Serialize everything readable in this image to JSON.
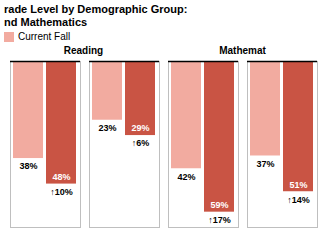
{
  "chart_data": {
    "type": "bar",
    "title": "rade Level by Demographic Group:",
    "subtitle": "nd Mathematics",
    "categories": [
      null,
      null,
      null,
      null
    ],
    "series": [
      {
        "name": "Current Fall",
        "color": "#f2aba0",
        "values": [
          38,
          23,
          42,
          37
        ],
        "value_labels": [
          "38%",
          "23%",
          "42%",
          "37%"
        ]
      },
      {
        "color": "#c95444",
        "values": [
          48,
          29,
          59,
          51
        ],
        "value_labels": [
          "48%",
          "29%",
          "59%",
          "51%"
        ],
        "change_values": [
          10,
          6,
          17,
          14
        ],
        "change_labels": [
          "↑10%",
          "↑6%",
          "↑17%",
          "↑14%"
        ]
      }
    ],
    "annotations": [
      "Reading",
      "Mathemat"
    ],
    "ylim": [
      0,
      65
    ],
    "data_labels": true,
    "tick_labels": false
  }
}
